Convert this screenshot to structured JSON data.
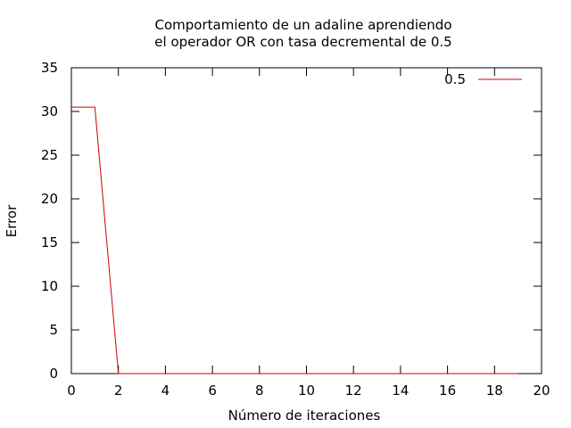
{
  "chart_data": {
    "type": "line",
    "title": [
      "Comportamiento de un adaline aprendiendo",
      "el operador OR con tasa decremental de 0.5"
    ],
    "xlabel": "Número de iteraciones",
    "ylabel": "Error",
    "xlim": [
      0,
      20
    ],
    "ylim": [
      0,
      35
    ],
    "xticks": [
      0,
      2,
      4,
      6,
      8,
      10,
      12,
      14,
      16,
      18,
      20
    ],
    "yticks": [
      0,
      5,
      10,
      15,
      20,
      25,
      30,
      35
    ],
    "grid": false,
    "legend_position": "top-right",
    "series": [
      {
        "name": "0.5",
        "color": "#cc0000",
        "x": [
          0,
          1,
          2,
          3,
          4,
          5,
          6,
          7,
          8,
          9,
          10,
          11,
          12,
          13,
          14,
          15,
          16,
          17,
          18,
          19
        ],
        "values": [
          30.5,
          30.5,
          0,
          0,
          0,
          0,
          0,
          0,
          0,
          0,
          0,
          0,
          0,
          0,
          0,
          0,
          0,
          0,
          0,
          0
        ]
      }
    ]
  }
}
